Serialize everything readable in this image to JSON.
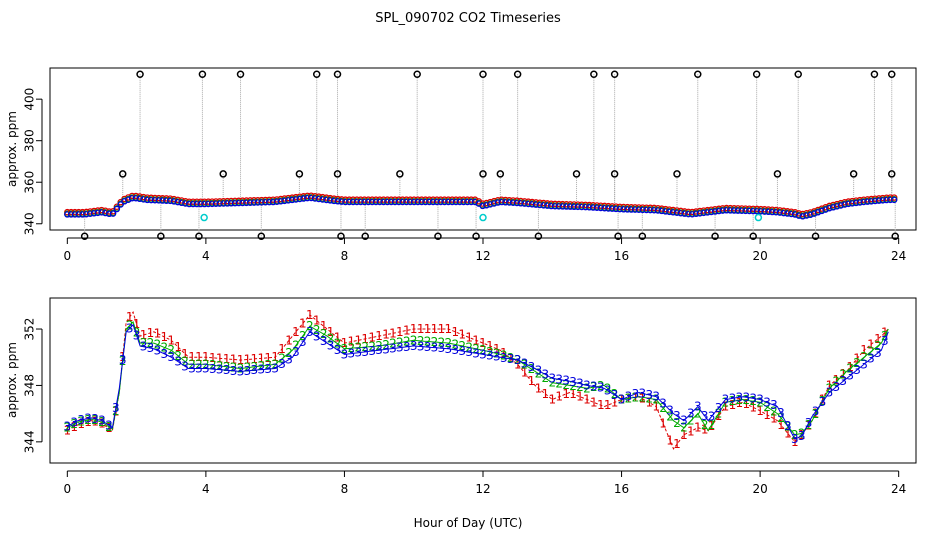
{
  "title": "SPL_090702  CO2 Timeseries",
  "xlabel": "Hour of Day (UTC)",
  "colors": {
    "series1": "#dd0000",
    "series2": "#00aa00",
    "series3": "#0000dd",
    "calibration": "#00cccc",
    "spikes": "#000000",
    "droplines": "#aaaaaa"
  },
  "chart_data": [
    {
      "type": "scatter",
      "panel": "top",
      "ylabel": "approx. ppm",
      "xlim": [
        -0.5,
        24.5
      ],
      "ylim": [
        337,
        415
      ],
      "xticks": [
        0,
        4,
        8,
        12,
        16,
        20,
        24
      ],
      "yticks": [
        340,
        360,
        380,
        400
      ],
      "baseline": [
        [
          0,
          345
        ],
        [
          0.5,
          345
        ],
        [
          1,
          346
        ],
        [
          1.3,
          345
        ],
        [
          1.6,
          351
        ],
        [
          1.9,
          353
        ],
        [
          2.3,
          352
        ],
        [
          3,
          351.5
        ],
        [
          3.5,
          350
        ],
        [
          4,
          350
        ],
        [
          5,
          350.5
        ],
        [
          6,
          351
        ],
        [
          6.5,
          352
        ],
        [
          7,
          353
        ],
        [
          7.7,
          351.5
        ],
        [
          8,
          351
        ],
        [
          10,
          351
        ],
        [
          11,
          351
        ],
        [
          11.8,
          351
        ],
        [
          12,
          349
        ],
        [
          12.5,
          351
        ],
        [
          13,
          350.5
        ],
        [
          14,
          349
        ],
        [
          15,
          348.5
        ],
        [
          16,
          347.5
        ],
        [
          17,
          347
        ],
        [
          17.5,
          346
        ],
        [
          18,
          345
        ],
        [
          18.5,
          346
        ],
        [
          19,
          347
        ],
        [
          20,
          346.5
        ],
        [
          20.5,
          346
        ],
        [
          21,
          345
        ],
        [
          21.2,
          344
        ],
        [
          21.5,
          345
        ],
        [
          22,
          348
        ],
        [
          22.5,
          350
        ],
        [
          23,
          351
        ],
        [
          23.7,
          352
        ]
      ],
      "spike_high": [
        2.1,
        3.9,
        5.0,
        7.2,
        7.8,
        10.1,
        12.0,
        13.0,
        15.2,
        15.8,
        18.2,
        19.9,
        21.1,
        23.3,
        23.8
      ],
      "spike_mid": [
        1.6,
        4.5,
        6.7,
        7.8,
        9.6,
        12.0,
        12.5,
        14.7,
        15.8,
        17.6,
        20.5,
        22.7,
        23.8
      ],
      "spike_low": [
        0.5,
        2.7,
        3.8,
        5.6,
        7.9,
        8.6,
        10.7,
        11.8,
        13.6,
        15.9,
        16.6,
        18.7,
        19.8,
        21.6,
        23.9
      ],
      "calibration_points": [
        [
          3.95,
          343
        ],
        [
          12.0,
          343
        ],
        [
          19.95,
          343
        ]
      ]
    },
    {
      "type": "scatter",
      "panel": "bottom",
      "ylabel": "approx. ppm",
      "xlim": [
        -0.5,
        24.5
      ],
      "ylim": [
        342.5,
        354.2
      ],
      "xticks": [
        0,
        4,
        8,
        12,
        16,
        20,
        24
      ],
      "yticks": [
        344,
        348,
        352
      ],
      "series": [
        {
          "name": "1",
          "values": [
            [
              0,
              344.8
            ],
            [
              0.3,
              345.2
            ],
            [
              0.7,
              345.5
            ],
            [
              1.0,
              345.3
            ],
            [
              1.3,
              344.8
            ],
            [
              1.5,
              347.5
            ],
            [
              1.7,
              352.5
            ],
            [
              1.9,
              353.2
            ],
            [
              2.1,
              351.5
            ],
            [
              2.5,
              351.8
            ],
            [
              3.0,
              351.2
            ],
            [
              3.5,
              350
            ],
            [
              4.0,
              350
            ],
            [
              5.0,
              349.8
            ],
            [
              6.0,
              350
            ],
            [
              6.5,
              351.5
            ],
            [
              7.0,
              353
            ],
            [
              7.5,
              352
            ],
            [
              8.0,
              351
            ],
            [
              9.0,
              351.5
            ],
            [
              10.0,
              352
            ],
            [
              11.0,
              352
            ],
            [
              12.0,
              351
            ],
            [
              12.5,
              350.5
            ],
            [
              13.0,
              349.5
            ],
            [
              13.5,
              348
            ],
            [
              14.0,
              347
            ],
            [
              14.5,
              347.5
            ],
            [
              15.0,
              347
            ],
            [
              15.5,
              346.5
            ],
            [
              16.0,
              347
            ],
            [
              16.5,
              347.2
            ],
            [
              17.0,
              346.5
            ],
            [
              17.5,
              343.5
            ],
            [
              17.8,
              344.5
            ],
            [
              18.2,
              345
            ],
            [
              18.5,
              344.8
            ],
            [
              19.0,
              346.5
            ],
            [
              19.5,
              346.8
            ],
            [
              20.0,
              346.2
            ],
            [
              20.5,
              345.5
            ],
            [
              21.0,
              344
            ],
            [
              21.2,
              344.5
            ],
            [
              21.5,
              345.5
            ],
            [
              22.0,
              348
            ],
            [
              22.5,
              349
            ],
            [
              23.0,
              350.5
            ],
            [
              23.5,
              351.5
            ],
            [
              23.7,
              352
            ]
          ]
        },
        {
          "name": "2",
          "values": [
            [
              0,
              345
            ],
            [
              0.3,
              345.4
            ],
            [
              0.7,
              345.6
            ],
            [
              1.0,
              345.4
            ],
            [
              1.3,
              344.9
            ],
            [
              1.5,
              347.5
            ],
            [
              1.7,
              352
            ],
            [
              1.9,
              352.5
            ],
            [
              2.1,
              351
            ],
            [
              2.5,
              351
            ],
            [
              3.0,
              350.5
            ],
            [
              3.5,
              349.5
            ],
            [
              4.0,
              349.5
            ],
            [
              5.0,
              349.2
            ],
            [
              6.0,
              349.5
            ],
            [
              6.5,
              350.5
            ],
            [
              7.0,
              352.2
            ],
            [
              7.5,
              351.5
            ],
            [
              8.0,
              350.6
            ],
            [
              9.0,
              350.8
            ],
            [
              10.0,
              351.2
            ],
            [
              11.0,
              351
            ],
            [
              12.0,
              350.5
            ],
            [
              12.5,
              350.2
            ],
            [
              13.0,
              349.8
            ],
            [
              13.5,
              349
            ],
            [
              14.0,
              348.2
            ],
            [
              14.5,
              348
            ],
            [
              15.0,
              347.8
            ],
            [
              15.5,
              348
            ],
            [
              16.0,
              347
            ],
            [
              16.5,
              347.2
            ],
            [
              17.0,
              347
            ],
            [
              17.5,
              345.5
            ],
            [
              17.8,
              345
            ],
            [
              18.2,
              346
            ],
            [
              18.5,
              344.8
            ],
            [
              19.0,
              346.8
            ],
            [
              19.5,
              347
            ],
            [
              20.0,
              346.8
            ],
            [
              20.5,
              346
            ],
            [
              21.0,
              344.5
            ],
            [
              21.2,
              344.6
            ],
            [
              21.5,
              345.5
            ],
            [
              22.0,
              347.8
            ],
            [
              22.5,
              349
            ],
            [
              23.0,
              350
            ],
            [
              23.5,
              351
            ],
            [
              23.7,
              352
            ]
          ]
        },
        {
          "name": "3",
          "values": [
            [
              0,
              345.1
            ],
            [
              0.3,
              345.5
            ],
            [
              0.7,
              345.7
            ],
            [
              1.0,
              345.5
            ],
            [
              1.3,
              345
            ],
            [
              1.5,
              347.8
            ],
            [
              1.7,
              351.8
            ],
            [
              1.9,
              352.3
            ],
            [
              2.1,
              350.8
            ],
            [
              2.5,
              350.6
            ],
            [
              3.0,
              350
            ],
            [
              3.5,
              349.2
            ],
            [
              4.0,
              349.2
            ],
            [
              5.0,
              349
            ],
            [
              6.0,
              349.2
            ],
            [
              6.5,
              350
            ],
            [
              7.0,
              351.8
            ],
            [
              7.5,
              351
            ],
            [
              8.0,
              350.2
            ],
            [
              9.0,
              350.5
            ],
            [
              10.0,
              350.8
            ],
            [
              11.0,
              350.6
            ],
            [
              12.0,
              350.2
            ],
            [
              12.5,
              350
            ],
            [
              13.0,
              349.8
            ],
            [
              13.5,
              349.2
            ],
            [
              14.0,
              348.5
            ],
            [
              14.5,
              348.3
            ],
            [
              15.0,
              348
            ],
            [
              15.5,
              347.8
            ],
            [
              16.0,
              347
            ],
            [
              16.5,
              347.5
            ],
            [
              17.0,
              347.2
            ],
            [
              17.5,
              346
            ],
            [
              17.8,
              345.5
            ],
            [
              18.2,
              346.5
            ],
            [
              18.5,
              345.5
            ],
            [
              19.0,
              347
            ],
            [
              19.5,
              347.2
            ],
            [
              20.0,
              347
            ],
            [
              20.5,
              346.5
            ],
            [
              21.0,
              344.2
            ],
            [
              21.2,
              344.4
            ],
            [
              21.5,
              345.8
            ],
            [
              22.0,
              347.5
            ],
            [
              22.5,
              348.5
            ],
            [
              23.0,
              349.5
            ],
            [
              23.5,
              350.5
            ],
            [
              23.7,
              351.8
            ]
          ]
        }
      ]
    }
  ]
}
